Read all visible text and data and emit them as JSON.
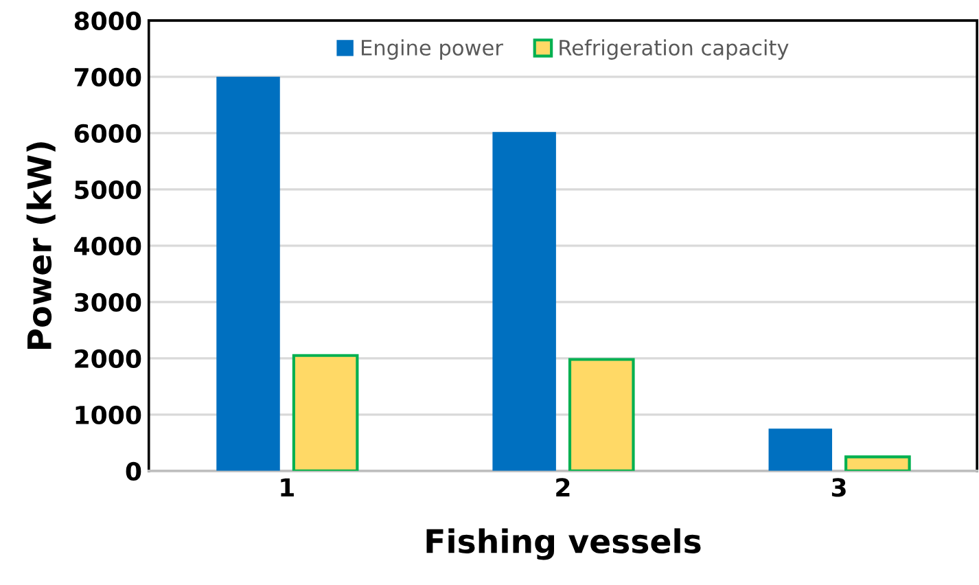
{
  "chart_data": {
    "type": "bar",
    "xlabel": "Fishing vessels",
    "ylabel": "Power (kW)",
    "categories": [
      "1",
      "2",
      "3"
    ],
    "series": [
      {
        "name": "Engine power",
        "color": "#0070c0",
        "values": [
          7000,
          6020,
          750
        ]
      },
      {
        "name": "Refrigeration capacity",
        "color": "#ffd966",
        "values": [
          2050,
          1980,
          250
        ]
      }
    ],
    "ylim": [
      0,
      8000
    ],
    "yticks": [
      0,
      1000,
      2000,
      3000,
      4000,
      5000,
      6000,
      7000,
      8000
    ],
    "grid": "y",
    "legend": "top"
  }
}
